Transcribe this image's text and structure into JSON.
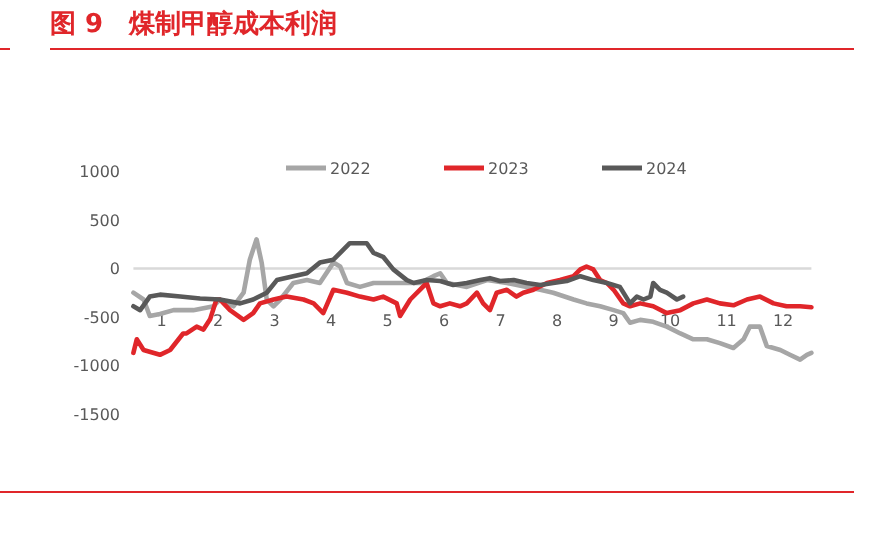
{
  "chart_data": {
    "type": "line",
    "title": "图 9　煤制甲醇成本利润",
    "xlim": [
      0,
      12
    ],
    "xticks": [
      {
        "value": 0.5,
        "label": "1"
      },
      {
        "value": 1.5,
        "label": "2"
      },
      {
        "value": 2.5,
        "label": "3"
      },
      {
        "value": 3.5,
        "label": "4"
      },
      {
        "value": 4.5,
        "label": "5"
      },
      {
        "value": 5.5,
        "label": "6"
      },
      {
        "value": 6.5,
        "label": "7"
      },
      {
        "value": 7.5,
        "label": "8"
      },
      {
        "value": 8.5,
        "label": "9"
      },
      {
        "value": 9.5,
        "label": "10"
      },
      {
        "value": 10.5,
        "label": "11"
      },
      {
        "value": 11.5,
        "label": "12"
      }
    ],
    "ylim": [
      -1500,
      1000
    ],
    "yticks": [
      -1500,
      -1000,
      -500,
      0,
      500,
      1000
    ],
    "ref_lines": [
      {
        "axis": "y",
        "value": 0,
        "color": "#d9d9d9"
      }
    ],
    "legend": "top",
    "grid": false,
    "marker": "none",
    "line_style": "solid",
    "series": [
      {
        "name": "2022",
        "color": "#a6a6a6",
        "x": [
          0,
          0.18,
          0.29,
          0.47,
          0.71,
          1.06,
          1.42,
          1.53,
          1.77,
          1.95,
          2.06,
          2.18,
          2.27,
          2.36,
          2.48,
          2.6,
          2.83,
          3.07,
          3.3,
          3.54,
          3.66,
          3.78,
          4.01,
          4.25,
          4.48,
          4.72,
          5.07,
          5.31,
          5.43,
          5.55,
          5.9,
          6.26,
          6.61,
          6.96,
          7.2,
          7.43,
          7.79,
          8.02,
          8.26,
          8.5,
          8.67,
          8.79,
          8.97,
          9.2,
          9.44,
          9.68,
          9.91,
          10.15,
          10.38,
          10.62,
          10.8,
          10.91,
          11.09,
          11.21,
          11.45,
          11.62,
          11.8,
          11.92,
          12
        ],
        "values": [
          -250,
          -320,
          -490,
          -470,
          -430,
          -430,
          -390,
          -320,
          -390,
          -250,
          90,
          300,
          60,
          -320,
          -390,
          -320,
          -150,
          -120,
          -150,
          60,
          20,
          -150,
          -190,
          -150,
          -150,
          -150,
          -150,
          -80,
          -50,
          -150,
          -190,
          -120,
          -150,
          -190,
          -220,
          -250,
          -320,
          -360,
          -390,
          -430,
          -460,
          -560,
          -530,
          -550,
          -600,
          -670,
          -730,
          -730,
          -770,
          -820,
          -730,
          -600,
          -600,
          -800,
          -840,
          -890,
          -940,
          -890,
          -870
        ]
      },
      {
        "name": "2023",
        "color": "#e0262a",
        "x": [
          0,
          0.06,
          0.18,
          0.47,
          0.65,
          0.88,
          0.94,
          1.12,
          1.24,
          1.36,
          1.47,
          1.53,
          1.71,
          1.95,
          2.12,
          2.24,
          2.48,
          2.71,
          3.01,
          3.19,
          3.36,
          3.54,
          3.78,
          4.01,
          4.25,
          4.42,
          4.66,
          4.72,
          4.9,
          5.07,
          5.19,
          5.31,
          5.43,
          5.6,
          5.78,
          5.9,
          6.08,
          6.19,
          6.31,
          6.43,
          6.61,
          6.78,
          6.9,
          7.08,
          7.32,
          7.55,
          7.79,
          7.91,
          8.02,
          8.14,
          8.26,
          8.38,
          8.5,
          8.67,
          8.79,
          8.97,
          9.2,
          9.44,
          9.68,
          9.91,
          10.15,
          10.38,
          10.62,
          10.86,
          11.09,
          11.33,
          11.56,
          11.8,
          12
        ],
        "values": [
          -870,
          -730,
          -840,
          -890,
          -840,
          -670,
          -670,
          -600,
          -630,
          -520,
          -320,
          -320,
          -430,
          -530,
          -460,
          -360,
          -320,
          -290,
          -320,
          -360,
          -460,
          -220,
          -250,
          -290,
          -320,
          -290,
          -360,
          -490,
          -320,
          -220,
          -150,
          -360,
          -390,
          -360,
          -390,
          -360,
          -250,
          -360,
          -430,
          -250,
          -220,
          -290,
          -250,
          -220,
          -150,
          -120,
          -80,
          -10,
          20,
          -10,
          -120,
          -150,
          -220,
          -360,
          -390,
          -360,
          -390,
          -460,
          -430,
          -360,
          -320,
          -360,
          -380,
          -320,
          -290,
          -360,
          -390,
          -390,
          -400
        ]
      },
      {
        "name": "2024",
        "color": "#595959",
        "x": [
          0,
          0.12,
          0.29,
          0.47,
          0.83,
          1.18,
          1.53,
          1.89,
          2.12,
          2.36,
          2.54,
          2.83,
          3.07,
          3.3,
          3.54,
          3.83,
          4.13,
          4.25,
          4.42,
          4.6,
          4.84,
          4.96,
          5.19,
          5.43,
          5.66,
          5.9,
          6.14,
          6.31,
          6.49,
          6.73,
          6.96,
          7.2,
          7.43,
          7.67,
          7.91,
          8.14,
          8.38,
          8.61,
          8.79,
          8.91,
          9.03,
          9.15,
          9.2,
          9.32,
          9.44,
          9.62,
          9.73
        ],
        "values": [
          -390,
          -430,
          -290,
          -270,
          -290,
          -310,
          -320,
          -360,
          -320,
          -250,
          -120,
          -80,
          -50,
          60,
          90,
          260,
          260,
          160,
          120,
          -10,
          -120,
          -150,
          -120,
          -130,
          -170,
          -150,
          -120,
          -100,
          -130,
          -120,
          -150,
          -170,
          -150,
          -130,
          -80,
          -120,
          -150,
          -190,
          -360,
          -290,
          -320,
          -290,
          -150,
          -220,
          -250,
          -320,
          -290
        ]
      }
    ]
  }
}
